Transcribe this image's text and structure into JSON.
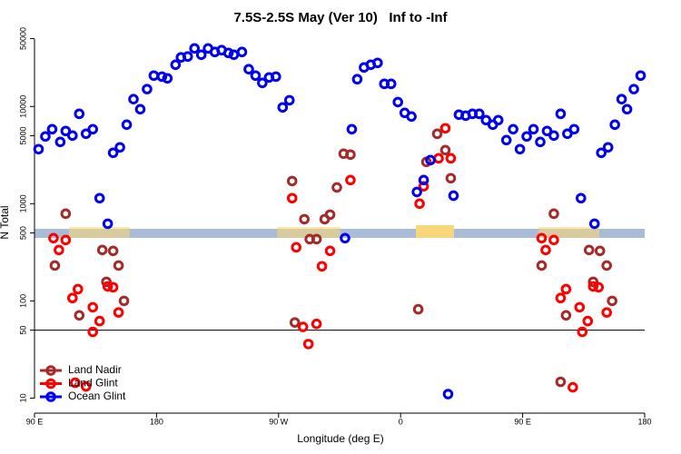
{
  "chart_data": {
    "type": "scatter",
    "title": "7.5S-2.5S May (Ver 10)   Inf to -Inf",
    "x_label": "Longitude (deg E)",
    "y_label": "N Total",
    "log_y": true,
    "xlim": [
      90,
      540
    ],
    "ylim": [
      7,
      60000
    ],
    "xticks": [
      {
        "value": 90,
        "label": "90 E"
      },
      180,
      {
        "value": 270,
        "label": "90 W"
      },
      {
        "value": 360,
        "label": "0"
      },
      {
        "value": 450,
        "label": "90 E"
      },
      {
        "value": 540,
        "label": "180"
      }
    ],
    "yticks": [
      10,
      50,
      100,
      500,
      1000,
      5000,
      10000,
      50000
    ],
    "hline": 50,
    "legend": "bottom-left",
    "series": [
      {
        "name": "Land Nadir",
        "color": "#a52a2a",
        "x": [
          105,
          113,
          140,
          143,
          148,
          152,
          156,
          123,
          280,
          282,
          289,
          293,
          298,
          304,
          308,
          313,
          318,
          323,
          373,
          379,
          387,
          393,
          397,
          464,
          473,
          499,
          502,
          507,
          512,
          516,
          482,
          478
        ],
        "values": [
          231,
          789,
          334,
          157,
          327,
          231,
          100,
          71,
          1710,
          60,
          693,
          432,
          432,
          693,
          772,
          1470,
          3270,
          3200,
          82,
          2690,
          5240,
          3560,
          1830,
          231,
          789,
          334,
          157,
          327,
          231,
          100,
          71,
          14.7
        ]
      },
      {
        "name": "Land Glint",
        "color": "#ff0000",
        "x": [
          104,
          108,
          113,
          118,
          122,
          120,
          128,
          133,
          138,
          144,
          148,
          152,
          133,
          280,
          283,
          288,
          292,
          298,
          302,
          308,
          323,
          377,
          374,
          388,
          393,
          397,
          464,
          467,
          473,
          478,
          482,
          487,
          492,
          498,
          502,
          506,
          512,
          494
        ],
        "values": [
          442,
          334,
          423,
          107,
          132,
          14.4,
          13.2,
          86,
          62,
          141,
          138,
          76,
          48,
          1140,
          356,
          54,
          36,
          58,
          227,
          327,
          1750,
          1510,
          1000,
          2930,
          5970,
          2930,
          442,
          334,
          423,
          107,
          132,
          12.9,
          86,
          62,
          141,
          138,
          76,
          48
        ]
      },
      {
        "name": "Ocean Glint",
        "color": "#0000ee",
        "x": [
          93,
          98,
          103,
          109,
          113,
          118,
          123,
          128,
          133,
          138,
          144,
          148,
          153,
          158,
          163,
          168,
          173,
          178,
          184,
          188,
          194,
          198,
          203,
          208,
          213,
          218,
          223,
          228,
          233,
          237,
          243,
          248,
          253,
          258,
          263,
          268,
          273,
          278,
          319,
          324,
          328,
          333,
          338,
          343,
          348,
          353,
          358,
          363,
          368,
          372,
          377,
          382,
          395,
          399,
          403,
          408,
          413,
          418,
          423,
          428,
          432,
          438,
          443,
          448,
          453,
          458,
          463,
          468,
          473,
          478,
          483,
          488,
          493,
          503,
          508,
          513,
          518,
          523,
          527,
          532,
          537
        ],
        "values": [
          3640,
          4920,
          5840,
          4320,
          5600,
          5020,
          8410,
          5250,
          5840,
          1140,
          622,
          3340,
          3800,
          6500,
          11900,
          9370,
          15100,
          20800,
          20300,
          19500,
          26900,
          32000,
          32700,
          39600,
          34100,
          39600,
          36400,
          38000,
          35600,
          34100,
          36400,
          24200,
          20800,
          17500,
          19900,
          20300,
          9790,
          11600,
          442,
          5840,
          19100,
          25200,
          26900,
          28100,
          17100,
          17100,
          11100,
          8600,
          7890,
          1320,
          1750,
          2810,
          11,
          1210,
          8240,
          8050,
          8410,
          8410,
          7240,
          6500,
          7240,
          4510,
          5840,
          3640,
          4920,
          5840,
          4320,
          5600,
          5020,
          8410,
          5250,
          5840,
          1140,
          622,
          3340,
          3800,
          6500,
          11900,
          9370,
          15100,
          20800
        ]
      }
    ]
  }
}
